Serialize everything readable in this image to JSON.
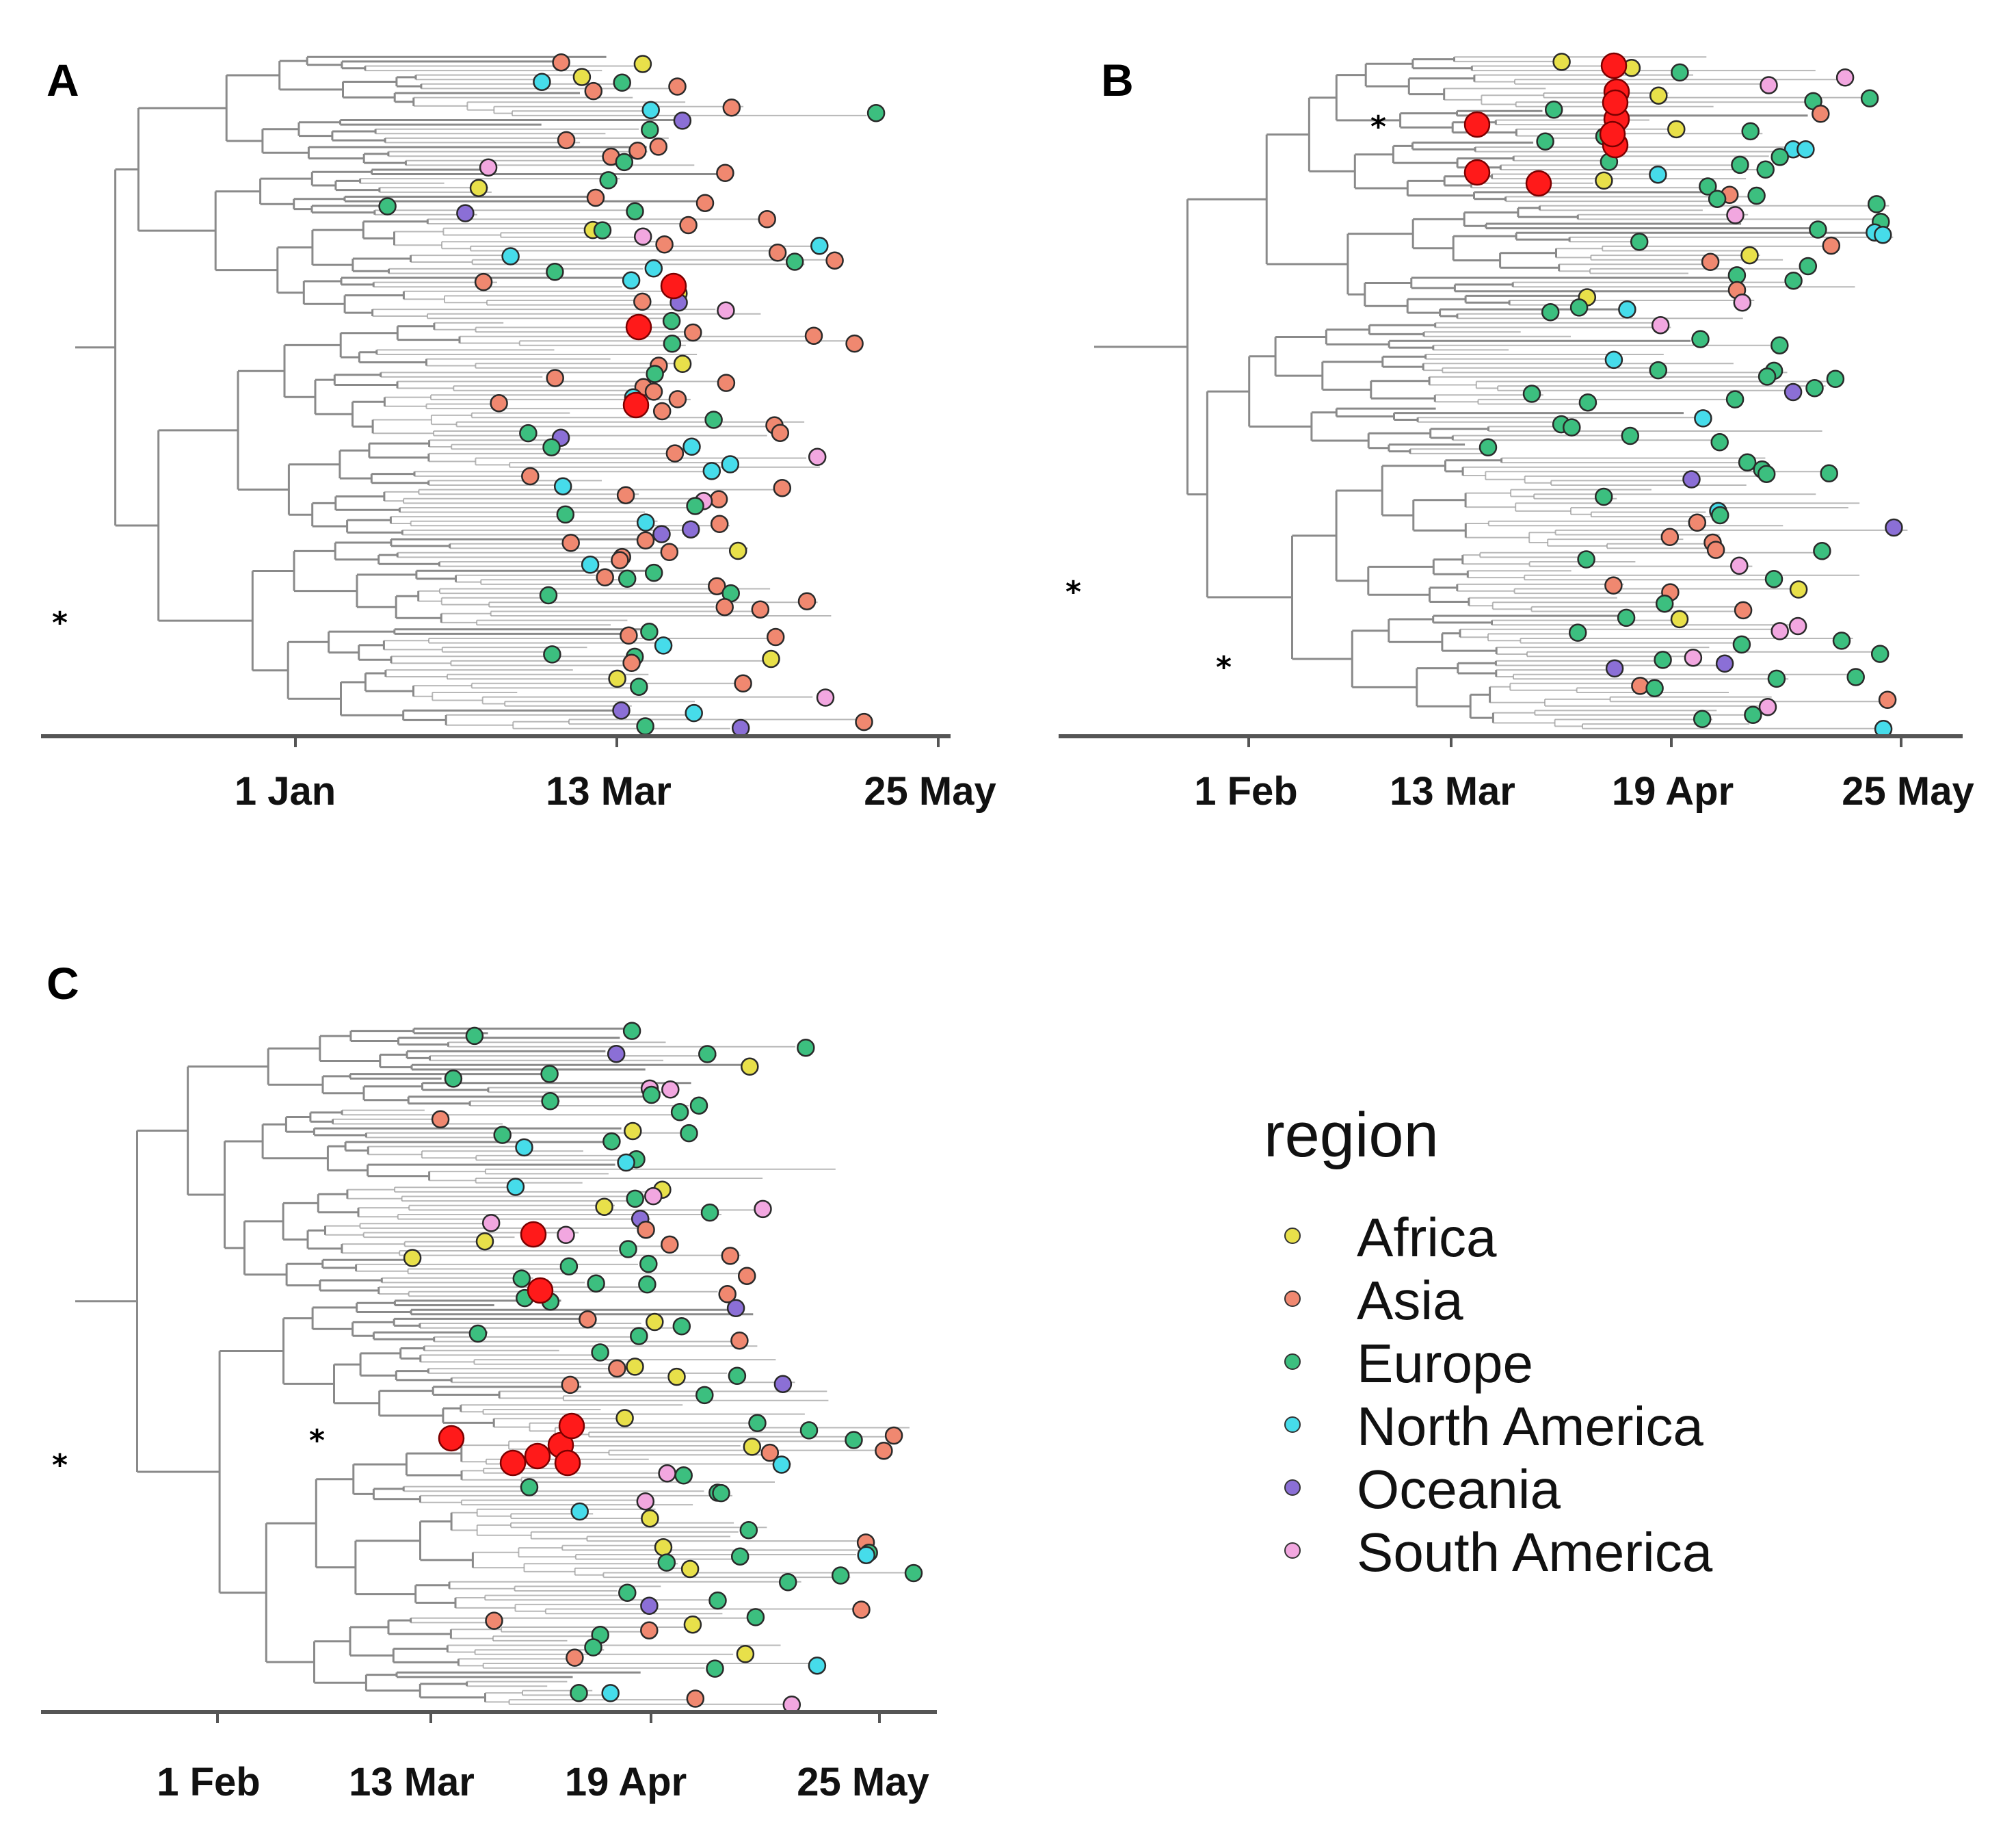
{
  "figure": {
    "legend": {
      "title": "region",
      "items": [
        {
          "label": "Africa",
          "color": "#e8e04a"
        },
        {
          "label": "Asia",
          "color": "#f08870"
        },
        {
          "label": "Europe",
          "color": "#3cbf7f"
        },
        {
          "label": "North America",
          "color": "#46dcea"
        },
        {
          "label": "Oceania",
          "color": "#8b6fd6"
        },
        {
          "label": "South America",
          "color": "#f2a7e0"
        }
      ]
    },
    "highlight_color": "#ff1a1a",
    "tree_color": "#8a8a8a",
    "marker": "*"
  },
  "panels": [
    {
      "letter": "A",
      "ticks": [
        "1 Jan",
        "13 Mar",
        "25 May"
      ]
    },
    {
      "letter": "B",
      "ticks": [
        "1 Feb",
        "13 Mar",
        "19 Apr",
        "25 May"
      ]
    },
    {
      "letter": "C",
      "ticks": [
        "1 Feb",
        "13 Mar",
        "19 Apr",
        "25 May"
      ]
    }
  ]
}
